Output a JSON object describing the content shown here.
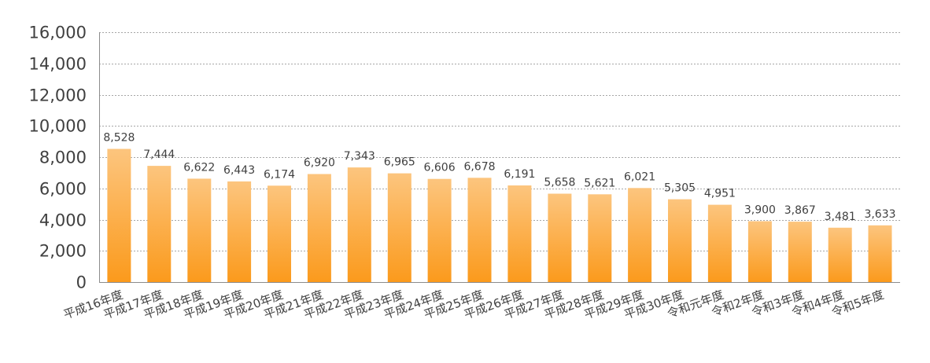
{
  "chart_data": {
    "type": "bar",
    "categories": [
      "平成16年度",
      "平成17年度",
      "平成18年度",
      "平成19年度",
      "平成20年度",
      "平成21年度",
      "平成22年度",
      "平成23年度",
      "平成24年度",
      "平成25年度",
      "平成26年度",
      "平成27年度",
      "平成28年度",
      "平成29年度",
      "平成30年度",
      "令和元年度",
      "令和2年度",
      "令和3年度",
      "令和4年度",
      "令和5年度"
    ],
    "values": [
      8528,
      7444,
      6622,
      6443,
      6174,
      6920,
      7343,
      6965,
      6606,
      6678,
      6191,
      5658,
      5621,
      6021,
      5305,
      4951,
      3900,
      3867,
      3481,
      3633
    ],
    "value_labels": [
      "8,528",
      "7,444",
      "6,622",
      "6,443",
      "6,174",
      "6,920",
      "7,343",
      "6,965",
      "6,606",
      "6,678",
      "6,191",
      "5,658",
      "5,621",
      "6,021",
      "5,305",
      "4,951",
      "3,900",
      "3,867",
      "3,481",
      "3,633"
    ],
    "y_ticks": [
      0,
      2000,
      4000,
      6000,
      8000,
      10000,
      12000,
      14000,
      16000
    ],
    "y_tick_labels": [
      "0",
      "2,000",
      "4,000",
      "6,000",
      "8,000",
      "10,000",
      "12,000",
      "14,000",
      "16,000"
    ],
    "ylim": [
      0,
      16000
    ],
    "grid": true,
    "gridline_style": "dotted",
    "legend": "none",
    "colors": {
      "bar_top": "#fcc57e",
      "bar_bottom": "#fb9a1c",
      "grid": "#a6a6a6",
      "axis": "#8c8c8c",
      "text": "#404040"
    }
  }
}
